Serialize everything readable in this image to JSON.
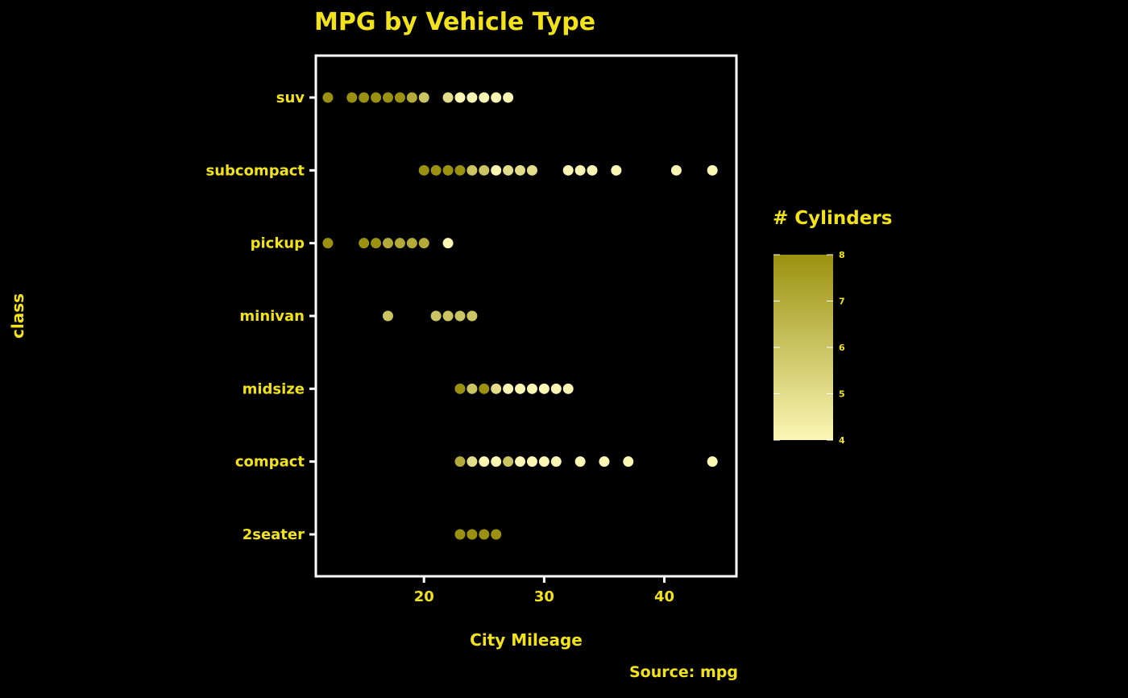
{
  "chart_data": {
    "type": "scatter",
    "title": "MPG by Vehicle Type",
    "xlabel": "City Mileage",
    "ylabel": "class",
    "caption": "Source: mpg",
    "categories": [
      "2seater",
      "compact",
      "midsize",
      "minivan",
      "pickup",
      "subcompact",
      "suv"
    ],
    "xlim": [
      11,
      46
    ],
    "xticks": [
      20,
      30,
      40
    ],
    "legend": {
      "title": "# Cylinders",
      "position": "right",
      "ticks": [
        4,
        5,
        6,
        7,
        8
      ],
      "color_low": "#fbf6b4",
      "color_high": "#9b9110"
    },
    "colors": {
      "background": "#000000",
      "text": "#f2e21a",
      "panel_border": "#ffffff"
    },
    "points": [
      {
        "class": "suv",
        "x": 12,
        "cyl": 8
      },
      {
        "class": "suv",
        "x": 14,
        "cyl": 8
      },
      {
        "class": "suv",
        "x": 15,
        "cyl": 8
      },
      {
        "class": "suv",
        "x": 16,
        "cyl": 8
      },
      {
        "class": "suv",
        "x": 17,
        "cyl": 8
      },
      {
        "class": "suv",
        "x": 18,
        "cyl": 8
      },
      {
        "class": "suv",
        "x": 19,
        "cyl": 7
      },
      {
        "class": "suv",
        "x": 20,
        "cyl": 6
      },
      {
        "class": "suv",
        "x": 22,
        "cyl": 5
      },
      {
        "class": "suv",
        "x": 23,
        "cyl": 4
      },
      {
        "class": "suv",
        "x": 24,
        "cyl": 4
      },
      {
        "class": "suv",
        "x": 25,
        "cyl": 4
      },
      {
        "class": "suv",
        "x": 26,
        "cyl": 4
      },
      {
        "class": "suv",
        "x": 27,
        "cyl": 4
      },
      {
        "class": "subcompact",
        "x": 20,
        "cyl": 8
      },
      {
        "class": "subcompact",
        "x": 21,
        "cyl": 8
      },
      {
        "class": "subcompact",
        "x": 22,
        "cyl": 8
      },
      {
        "class": "subcompact",
        "x": 23,
        "cyl": 8
      },
      {
        "class": "subcompact",
        "x": 24,
        "cyl": 6
      },
      {
        "class": "subcompact",
        "x": 25,
        "cyl": 6
      },
      {
        "class": "subcompact",
        "x": 26,
        "cyl": 4
      },
      {
        "class": "subcompact",
        "x": 27,
        "cyl": 5
      },
      {
        "class": "subcompact",
        "x": 28,
        "cyl": 5
      },
      {
        "class": "subcompact",
        "x": 29,
        "cyl": 5
      },
      {
        "class": "subcompact",
        "x": 32,
        "cyl": 4
      },
      {
        "class": "subcompact",
        "x": 33,
        "cyl": 4
      },
      {
        "class": "subcompact",
        "x": 34,
        "cyl": 4
      },
      {
        "class": "subcompact",
        "x": 36,
        "cyl": 4
      },
      {
        "class": "subcompact",
        "x": 41,
        "cyl": 4
      },
      {
        "class": "subcompact",
        "x": 44,
        "cyl": 4
      },
      {
        "class": "pickup",
        "x": 12,
        "cyl": 8
      },
      {
        "class": "pickup",
        "x": 15,
        "cyl": 8
      },
      {
        "class": "pickup",
        "x": 16,
        "cyl": 8
      },
      {
        "class": "pickup",
        "x": 17,
        "cyl": 7
      },
      {
        "class": "pickup",
        "x": 18,
        "cyl": 7
      },
      {
        "class": "pickup",
        "x": 19,
        "cyl": 7
      },
      {
        "class": "pickup",
        "x": 20,
        "cyl": 7
      },
      {
        "class": "pickup",
        "x": 22,
        "cyl": 4
      },
      {
        "class": "minivan",
        "x": 17,
        "cyl": 6
      },
      {
        "class": "minivan",
        "x": 21,
        "cyl": 6
      },
      {
        "class": "minivan",
        "x": 22,
        "cyl": 6
      },
      {
        "class": "minivan",
        "x": 23,
        "cyl": 6
      },
      {
        "class": "minivan",
        "x": 24,
        "cyl": 6
      },
      {
        "class": "midsize",
        "x": 23,
        "cyl": 8
      },
      {
        "class": "midsize",
        "x": 24,
        "cyl": 6
      },
      {
        "class": "midsize",
        "x": 25,
        "cyl": 8
      },
      {
        "class": "midsize",
        "x": 26,
        "cyl": 5
      },
      {
        "class": "midsize",
        "x": 27,
        "cyl": 4
      },
      {
        "class": "midsize",
        "x": 28,
        "cyl": 4
      },
      {
        "class": "midsize",
        "x": 29,
        "cyl": 4
      },
      {
        "class": "midsize",
        "x": 30,
        "cyl": 4
      },
      {
        "class": "midsize",
        "x": 31,
        "cyl": 4
      },
      {
        "class": "midsize",
        "x": 32,
        "cyl": 4
      },
      {
        "class": "compact",
        "x": 23,
        "cyl": 7
      },
      {
        "class": "compact",
        "x": 24,
        "cyl": 5
      },
      {
        "class": "compact",
        "x": 25,
        "cyl": 4
      },
      {
        "class": "compact",
        "x": 26,
        "cyl": 4
      },
      {
        "class": "compact",
        "x": 27,
        "cyl": 6
      },
      {
        "class": "compact",
        "x": 28,
        "cyl": 4
      },
      {
        "class": "compact",
        "x": 29,
        "cyl": 4
      },
      {
        "class": "compact",
        "x": 30,
        "cyl": 4
      },
      {
        "class": "compact",
        "x": 31,
        "cyl": 4
      },
      {
        "class": "compact",
        "x": 33,
        "cyl": 4
      },
      {
        "class": "compact",
        "x": 35,
        "cyl": 4
      },
      {
        "class": "compact",
        "x": 37,
        "cyl": 4
      },
      {
        "class": "compact",
        "x": 44,
        "cyl": 4
      },
      {
        "class": "2seater",
        "x": 23,
        "cyl": 8
      },
      {
        "class": "2seater",
        "x": 24,
        "cyl": 8
      },
      {
        "class": "2seater",
        "x": 25,
        "cyl": 8
      },
      {
        "class": "2seater",
        "x": 26,
        "cyl": 8
      }
    ]
  }
}
